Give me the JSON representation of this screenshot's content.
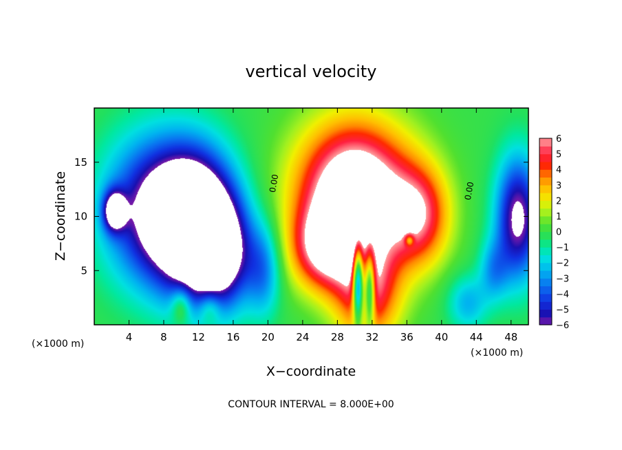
{
  "chart_data": {
    "type": "heatmap",
    "title": "vertical velocity",
    "xlabel": "X−coordinate",
    "ylabel": "Z−coordinate",
    "x_unit_label": "(×1000 m)",
    "x_unit_label_right": "(×1000 m)",
    "footer": "CONTOUR INTERVAL = 8.000E+00",
    "xlim": [
      0,
      50
    ],
    "ylim": [
      0,
      20
    ],
    "x_ticks": [
      {
        "value": 4,
        "label": "4"
      },
      {
        "value": 8,
        "label": "8"
      },
      {
        "value": 12,
        "label": "12"
      },
      {
        "value": 16,
        "label": "16"
      },
      {
        "value": 20,
        "label": "20"
      },
      {
        "value": 24,
        "label": "24"
      },
      {
        "value": 28,
        "label": "28"
      },
      {
        "value": 32,
        "label": "32"
      },
      {
        "value": 36,
        "label": "36"
      },
      {
        "value": 40,
        "label": "40"
      },
      {
        "value": 44,
        "label": "44"
      },
      {
        "value": 48,
        "label": "48"
      }
    ],
    "y_ticks": [
      {
        "value": 5,
        "label": "5"
      },
      {
        "value": 10,
        "label": "10"
      },
      {
        "value": 15,
        "label": "15"
      }
    ],
    "contour_labels": [
      {
        "text": "0.00",
        "x": 21.0,
        "z": 13.0
      },
      {
        "text": "0.00",
        "x": 43.5,
        "z": 12.3
      }
    ],
    "colorbar": {
      "min": -6,
      "max": 6,
      "labels": [
        {
          "value": 6,
          "label": "6"
        },
        {
          "value": 5,
          "label": "5"
        },
        {
          "value": 4,
          "label": "4"
        },
        {
          "value": 3,
          "label": "3"
        },
        {
          "value": 2,
          "label": "2"
        },
        {
          "value": 1,
          "label": "1"
        },
        {
          "value": 0,
          "label": "0"
        },
        {
          "value": -1,
          "label": "−1"
        },
        {
          "value": -2,
          "label": "−2"
        },
        {
          "value": -3,
          "label": "−3"
        },
        {
          "value": -4,
          "label": "−4"
        },
        {
          "value": -5,
          "label": "−5"
        },
        {
          "value": -6,
          "label": "−6"
        }
      ],
      "stops": [
        {
          "value": -6,
          "color": "#7a1aa8"
        },
        {
          "value": -5.3,
          "color": "#1a10b0"
        },
        {
          "value": -4.5,
          "color": "#1030e0"
        },
        {
          "value": -3.5,
          "color": "#0a70f0"
        },
        {
          "value": -2.5,
          "color": "#00b4f0"
        },
        {
          "value": -1.7,
          "color": "#00e0e0"
        },
        {
          "value": -1.0,
          "color": "#00e8a0"
        },
        {
          "value": -0.4,
          "color": "#20e060"
        },
        {
          "value": 0.5,
          "color": "#50e030"
        },
        {
          "value": 1.2,
          "color": "#a0f020"
        },
        {
          "value": 2.0,
          "color": "#f0f000"
        },
        {
          "value": 2.8,
          "color": "#ffc000"
        },
        {
          "value": 3.5,
          "color": "#ff8800"
        },
        {
          "value": 4.2,
          "color": "#ff2a00"
        },
        {
          "value": 5.0,
          "color": "#ff2040"
        },
        {
          "value": 6.0,
          "color": "#ffa0a0"
        }
      ],
      "saturated_color": "#ffffff"
    },
    "field_features": [
      {
        "x": 30.0,
        "z": 12.0,
        "sx": 4.6,
        "sz": 4.6,
        "amp": 9.0
      },
      {
        "x": 26.5,
        "z": 7.0,
        "sx": 2.6,
        "sz": 2.6,
        "amp": 5.0
      },
      {
        "x": 37.5,
        "z": 10.0,
        "sx": 2.4,
        "sz": 3.2,
        "amp": 4.5
      },
      {
        "x": 31.5,
        "z": 3.0,
        "sx": 2.6,
        "sz": 3.4,
        "amp": 5.0
      },
      {
        "x": 30.4,
        "z": 4.0,
        "sx": 0.45,
        "sz": 2.6,
        "amp": -9.0
      },
      {
        "x": 31.7,
        "z": 3.6,
        "sx": 0.45,
        "sz": 2.6,
        "amp": -6.5
      },
      {
        "x": 11.5,
        "z": 9.5,
        "sx": 3.3,
        "sz": 4.5,
        "amp": -9.5
      },
      {
        "x": 14.5,
        "z": 6.5,
        "sx": 2.5,
        "sz": 3.5,
        "amp": -6.0
      },
      {
        "x": 6.5,
        "z": 10.5,
        "sx": 4.0,
        "sz": 4.8,
        "amp": -5.5
      },
      {
        "x": 2.3,
        "z": 10.5,
        "sx": 0.9,
        "sz": 1.3,
        "amp": -6.0
      },
      {
        "x": 48.8,
        "z": 9.8,
        "sx": 1.8,
        "sz": 4.0,
        "amp": -6.5
      },
      {
        "x": 10.0,
        "z": 1.8,
        "sx": 0.8,
        "sz": 1.2,
        "amp": 2.5
      },
      {
        "x": 13.3,
        "z": 1.6,
        "sx": 0.9,
        "sz": 1.1,
        "amp": 2.0
      },
      {
        "x": 43.0,
        "z": 2.0,
        "sx": 1.6,
        "sz": 1.8,
        "amp": -2.5
      },
      {
        "x": 19.5,
        "z": 5.0,
        "sx": 1.4,
        "sz": 3.0,
        "amp": -3.0
      },
      {
        "x": 36.3,
        "z": 7.8,
        "sx": 0.35,
        "sz": 0.35,
        "amp": -3.0
      },
      {
        "x": 46.0,
        "z": 5.0,
        "sx": 1.2,
        "sz": 2.0,
        "amp": -2.5
      }
    ]
  }
}
